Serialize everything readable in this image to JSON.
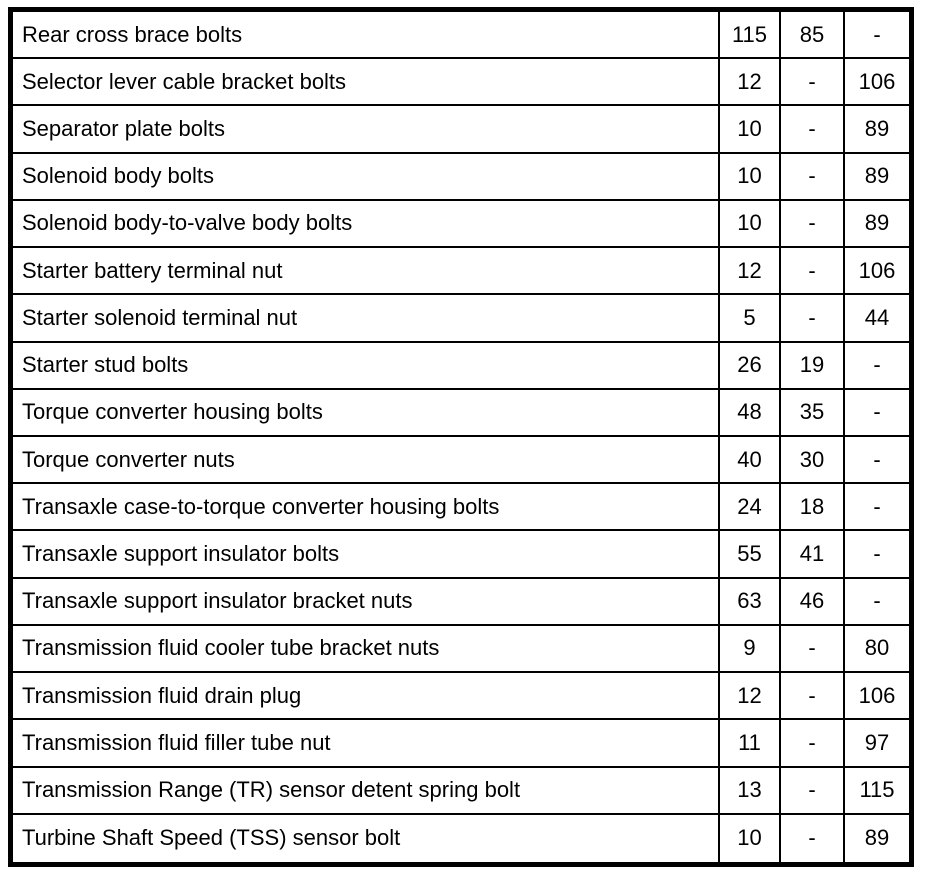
{
  "table": {
    "border_color": "#000000",
    "background_color": "#ffffff",
    "rows": [
      {
        "label": "Rear cross brace bolts",
        "values": [
          "115",
          "85",
          "-"
        ]
      },
      {
        "label": "Selector lever cable bracket bolts",
        "values": [
          "12",
          "-",
          "106"
        ]
      },
      {
        "label": "Separator plate bolts",
        "values": [
          "10",
          "-",
          "89"
        ]
      },
      {
        "label": "Solenoid body bolts",
        "values": [
          "10",
          "-",
          "89"
        ]
      },
      {
        "label": "Solenoid body-to-valve body bolts",
        "values": [
          "10",
          "-",
          "89"
        ]
      },
      {
        "label": "Starter battery terminal nut",
        "values": [
          "12",
          "-",
          "106"
        ]
      },
      {
        "label": "Starter solenoid terminal nut",
        "values": [
          "5",
          "-",
          "44"
        ]
      },
      {
        "label": "Starter stud bolts",
        "values": [
          "26",
          "19",
          "-"
        ]
      },
      {
        "label": "Torque converter housing bolts",
        "values": [
          "48",
          "35",
          "-"
        ]
      },
      {
        "label": "Torque converter nuts",
        "values": [
          "40",
          "30",
          "-"
        ]
      },
      {
        "label": "Transaxle case-to-torque converter housing bolts",
        "values": [
          "24",
          "18",
          "-"
        ]
      },
      {
        "label": "Transaxle support insulator bolts",
        "values": [
          "55",
          "41",
          "-"
        ]
      },
      {
        "label": "Transaxle support insulator bracket nuts",
        "values": [
          "63",
          "46",
          "-"
        ]
      },
      {
        "label": "Transmission fluid cooler tube bracket nuts",
        "values": [
          "9",
          "-",
          "80"
        ]
      },
      {
        "label": "Transmission fluid drain plug",
        "values": [
          "12",
          "-",
          "106"
        ]
      },
      {
        "label": "Transmission fluid filler tube nut",
        "values": [
          "11",
          "-",
          "97"
        ]
      },
      {
        "label": "Transmission Range (TR) sensor detent spring bolt",
        "values": [
          "13",
          "-",
          "115"
        ]
      },
      {
        "label": "Turbine Shaft Speed (TSS) sensor bolt",
        "values": [
          "10",
          "-",
          "89"
        ]
      }
    ]
  }
}
